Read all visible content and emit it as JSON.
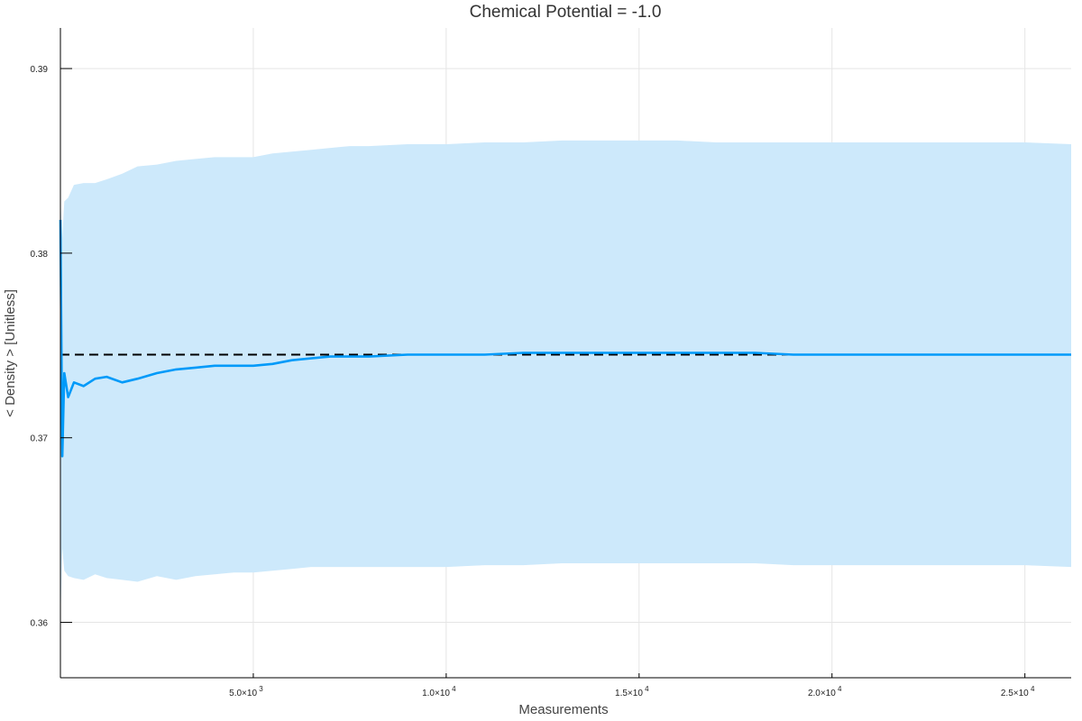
{
  "chart_data": {
    "type": "line",
    "title": "Chemical Potential = -1.0",
    "xlabel": "Measurements",
    "ylabel": "< Density > [Unitless]",
    "xlim": [
      0,
      26200
    ],
    "ylim": [
      0.357,
      0.3922
    ],
    "grid": true,
    "legend": "none",
    "x_ticks": [
      {
        "value": 5000,
        "mantissa": "5.0×10",
        "exponent": "3"
      },
      {
        "value": 10000,
        "mantissa": "1.0×10",
        "exponent": "4"
      },
      {
        "value": 15000,
        "mantissa": "1.5×10",
        "exponent": "4"
      },
      {
        "value": 20000,
        "mantissa": "2.0×10",
        "exponent": "4"
      },
      {
        "value": 25000,
        "mantissa": "2.5×10",
        "exponent": "4"
      }
    ],
    "y_ticks": [
      {
        "value": 0.36,
        "label": "0.36"
      },
      {
        "value": 0.37,
        "label": "0.37"
      },
      {
        "value": 0.38,
        "label": "0.38"
      },
      {
        "value": 0.39,
        "label": "0.39"
      }
    ],
    "reference_line": {
      "y": 0.3745,
      "style": "dashed",
      "color": "#000000"
    },
    "colors": {
      "line": "#009af9",
      "band": "#cde9fb"
    },
    "series": [
      {
        "x": [
          0,
          50,
          100,
          200,
          350,
          600,
          900,
          1200,
          1600,
          2000,
          2500,
          3000,
          3500,
          4000,
          4500,
          5000,
          5500,
          6000,
          6500,
          7000,
          7500,
          8000,
          9000,
          10000,
          11000,
          12000,
          13000,
          14000,
          15000,
          16000,
          17000,
          18000,
          19000,
          20000,
          21000,
          22000,
          23000,
          24000,
          25000,
          26200
        ],
        "mean": [
          0.3818,
          0.369,
          0.3735,
          0.3722,
          0.373,
          0.3728,
          0.3732,
          0.3733,
          0.373,
          0.3732,
          0.3735,
          0.3737,
          0.3738,
          0.3739,
          0.3739,
          0.3739,
          0.374,
          0.3742,
          0.3743,
          0.3744,
          0.3744,
          0.3744,
          0.3745,
          0.3745,
          0.3745,
          0.3746,
          0.3746,
          0.3746,
          0.3746,
          0.3746,
          0.3746,
          0.3746,
          0.3745,
          0.3745,
          0.3745,
          0.3745,
          0.3745,
          0.3745,
          0.3745,
          0.3745
        ],
        "upper": [
          0.383,
          0.3808,
          0.3828,
          0.383,
          0.3837,
          0.3838,
          0.3838,
          0.384,
          0.3843,
          0.3847,
          0.3848,
          0.385,
          0.3851,
          0.3852,
          0.3852,
          0.3852,
          0.3854,
          0.3855,
          0.3856,
          0.3857,
          0.3858,
          0.3858,
          0.3859,
          0.3859,
          0.386,
          0.386,
          0.3861,
          0.3861,
          0.3861,
          0.3861,
          0.386,
          0.386,
          0.386,
          0.386,
          0.386,
          0.386,
          0.386,
          0.386,
          0.386,
          0.3859
        ],
        "lower": [
          0.36,
          0.364,
          0.3628,
          0.3625,
          0.3624,
          0.3623,
          0.3626,
          0.3624,
          0.3623,
          0.3622,
          0.3625,
          0.3623,
          0.3625,
          0.3626,
          0.3627,
          0.3627,
          0.3628,
          0.3629,
          0.363,
          0.363,
          0.363,
          0.363,
          0.363,
          0.363,
          0.3631,
          0.3631,
          0.3632,
          0.3632,
          0.3632,
          0.3632,
          0.3632,
          0.3632,
          0.3631,
          0.3631,
          0.3631,
          0.3631,
          0.3631,
          0.3631,
          0.3631,
          0.363
        ]
      }
    ]
  }
}
